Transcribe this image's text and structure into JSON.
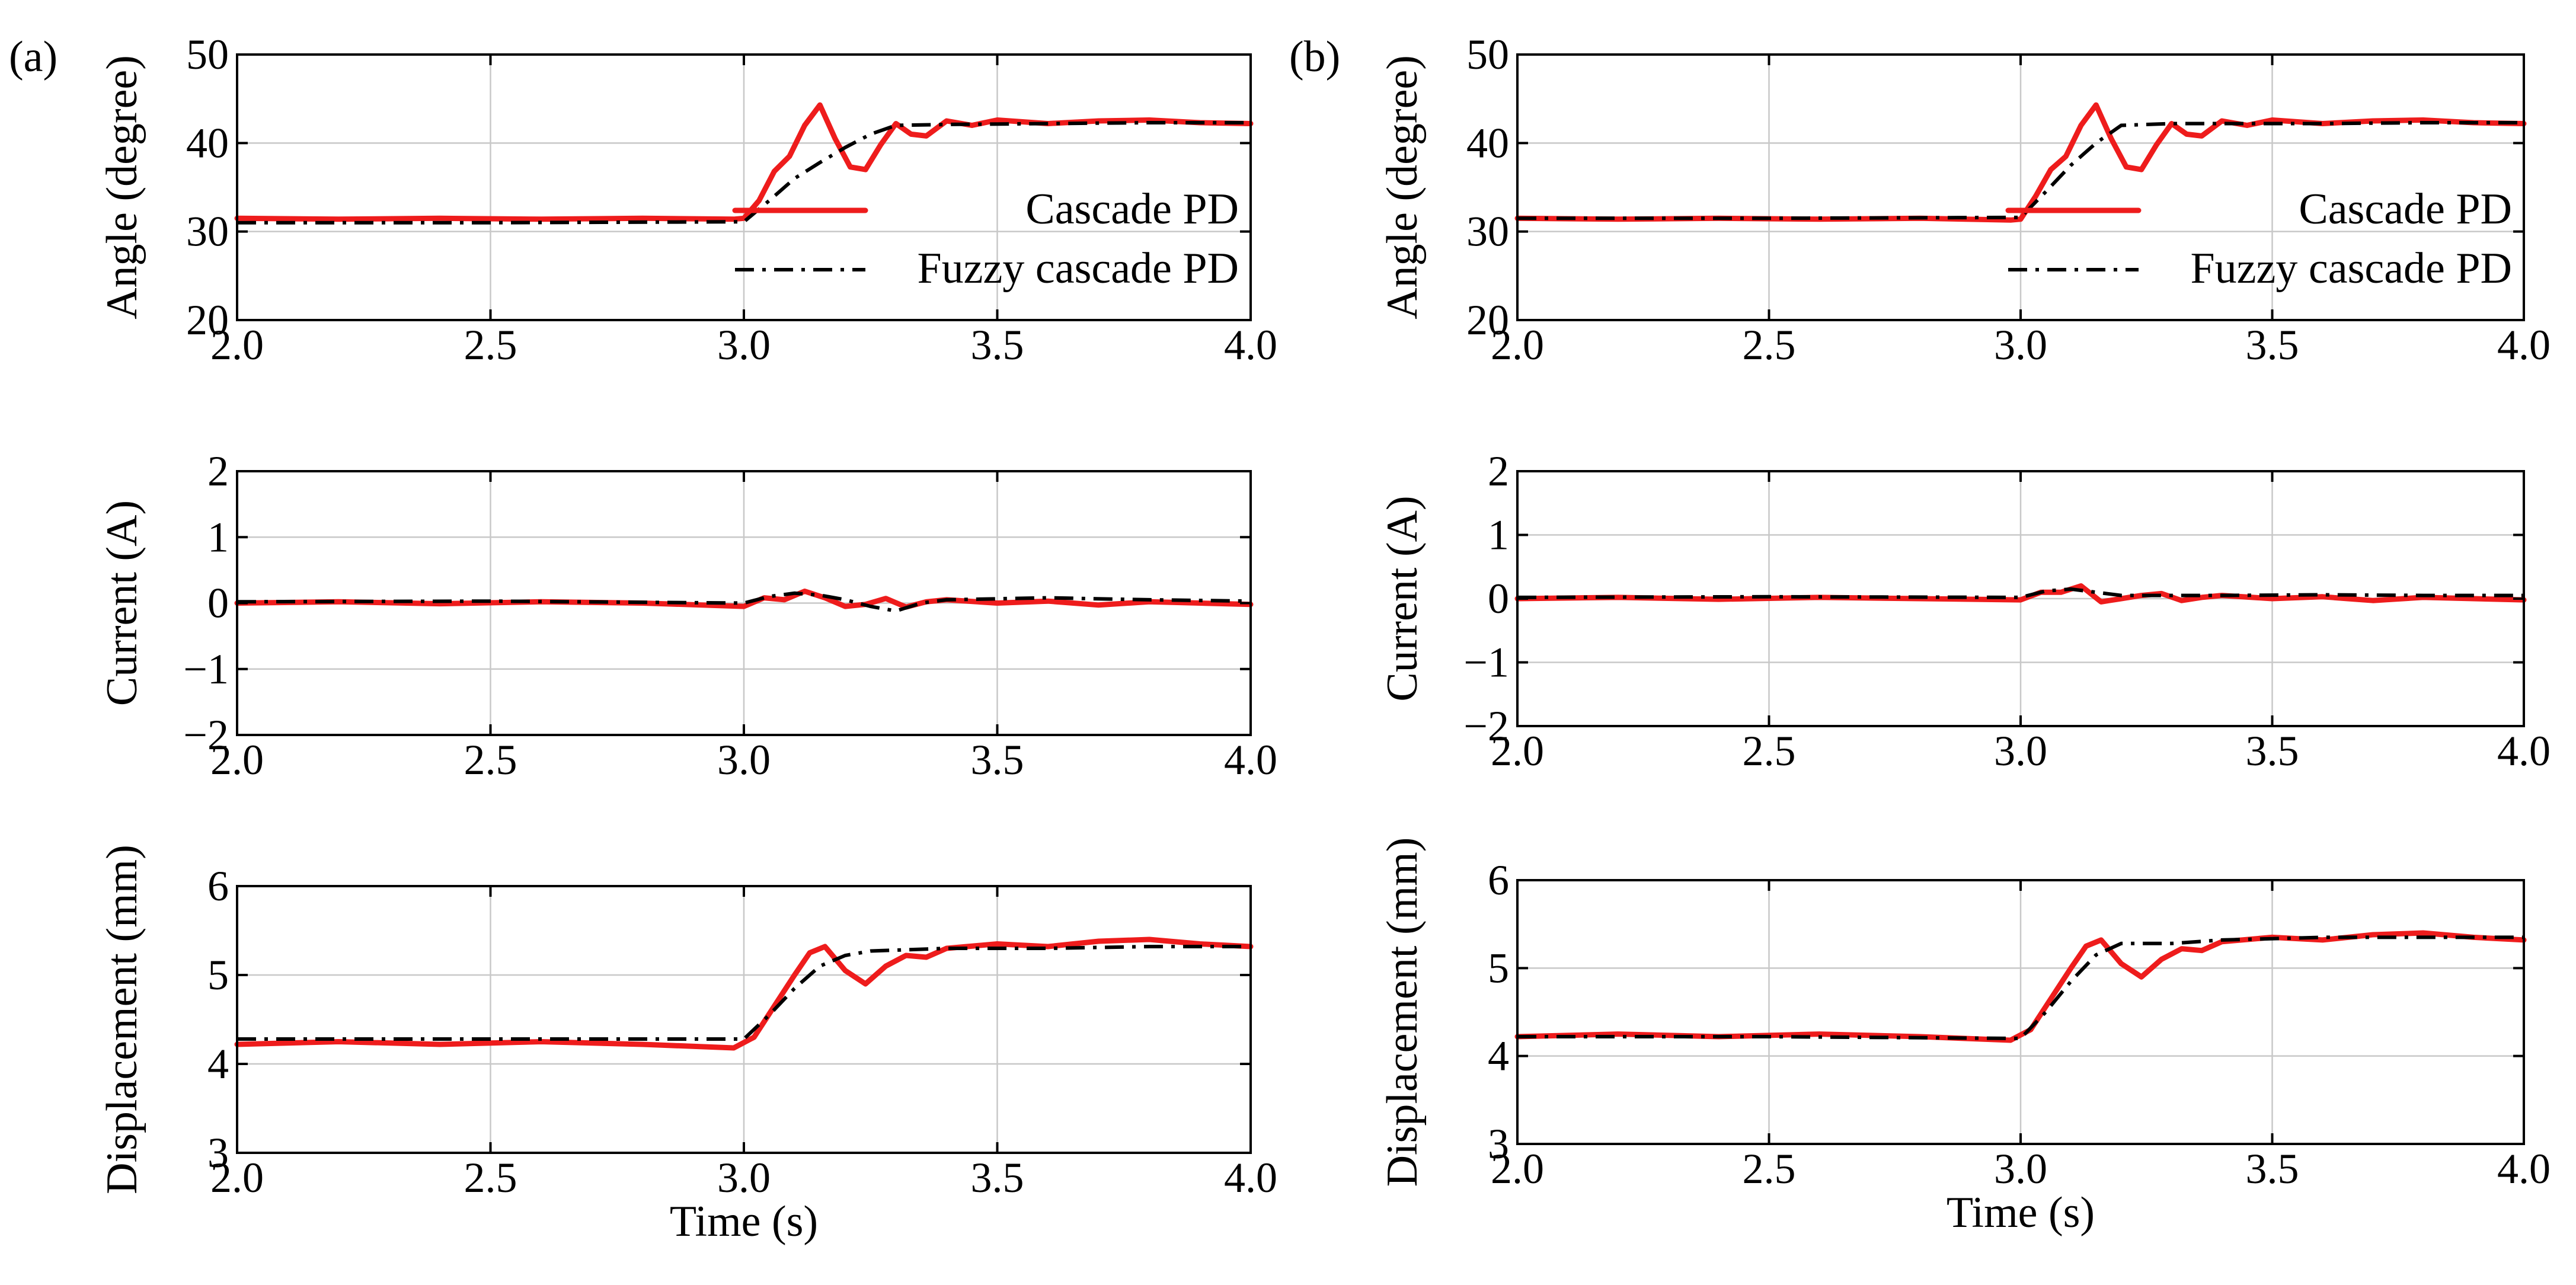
{
  "colors": {
    "cascade": "#ee1c1c",
    "fuzzy": "#000000",
    "grid": "#c8c8c8"
  },
  "chart_data": [
    {
      "type": "line",
      "panel_label": "(a)",
      "legend": "right",
      "xlabel": "",
      "ylabel": "Angle (degree)",
      "xlim": [
        2.0,
        4.0
      ],
      "ylim": [
        20,
        50
      ],
      "xticks": [
        "2.0",
        "2.5",
        "3.0",
        "3.5",
        "4.0"
      ],
      "yticks": [
        "20",
        "30",
        "40",
        "50"
      ],
      "grid": true,
      "series": [
        {
          "name": "Cascade PD",
          "x": [
            2.0,
            2.2,
            2.4,
            2.6,
            2.8,
            2.98,
            3.0,
            3.03,
            3.06,
            3.09,
            3.12,
            3.15,
            3.18,
            3.21,
            3.24,
            3.27,
            3.3,
            3.33,
            3.36,
            3.4,
            3.45,
            3.5,
            3.6,
            3.7,
            3.8,
            3.9,
            4.0
          ],
          "y": [
            31.5,
            31.4,
            31.5,
            31.4,
            31.5,
            31.4,
            31.5,
            33.5,
            36.8,
            38.5,
            42.0,
            44.3,
            40.5,
            37.3,
            37.0,
            39.8,
            42.2,
            41.0,
            40.8,
            42.5,
            42.0,
            42.6,
            42.2,
            42.5,
            42.6,
            42.3,
            42.2
          ]
        },
        {
          "name": "Fuzzy cascade PD",
          "x": [
            2.0,
            2.5,
            3.0,
            3.05,
            3.1,
            3.15,
            3.2,
            3.25,
            3.3,
            3.4,
            3.6,
            3.8,
            4.0
          ],
          "y": [
            31.0,
            31.0,
            31.1,
            33.5,
            36.0,
            37.8,
            39.5,
            41.0,
            42.0,
            42.1,
            42.2,
            42.3,
            42.3
          ]
        }
      ]
    },
    {
      "type": "line",
      "panel_label": "",
      "legend": "none",
      "xlabel": "",
      "ylabel": "Current (A)",
      "xlim": [
        2.0,
        4.0
      ],
      "ylim": [
        -2,
        2
      ],
      "xticks": [
        "2.0",
        "2.5",
        "3.0",
        "3.5",
        "4.0"
      ],
      "yticks": [
        "−2",
        "−1",
        "0",
        "1",
        "2"
      ],
      "grid": true,
      "series": [
        {
          "name": "Cascade PD",
          "x": [
            2.0,
            2.2,
            2.4,
            2.6,
            2.8,
            3.0,
            3.04,
            3.08,
            3.12,
            3.16,
            3.2,
            3.24,
            3.28,
            3.32,
            3.36,
            3.4,
            3.5,
            3.6,
            3.7,
            3.8,
            3.9,
            4.0
          ],
          "y": [
            0.0,
            0.02,
            -0.01,
            0.02,
            0.0,
            -0.05,
            0.08,
            0.05,
            0.18,
            0.08,
            -0.05,
            -0.02,
            0.07,
            -0.06,
            0.02,
            0.05,
            0.0,
            0.03,
            -0.03,
            0.02,
            0.0,
            -0.02
          ]
        },
        {
          "name": "Fuzzy cascade PD",
          "x": [
            2.0,
            2.5,
            3.0,
            3.05,
            3.1,
            3.15,
            3.2,
            3.25,
            3.3,
            3.35,
            3.4,
            3.6,
            3.8,
            4.0
          ],
          "y": [
            0.02,
            0.03,
            0.0,
            0.1,
            0.15,
            0.12,
            0.05,
            -0.05,
            -0.12,
            0.0,
            0.05,
            0.08,
            0.05,
            0.03
          ]
        }
      ]
    },
    {
      "type": "line",
      "panel_label": "",
      "legend": "none",
      "xlabel": "Time (s)",
      "ylabel": "Displacement (mm)",
      "xlim": [
        2.0,
        4.0
      ],
      "ylim": [
        3,
        6
      ],
      "xticks": [
        "2.0",
        "2.5",
        "3.0",
        "3.5",
        "4.0"
      ],
      "yticks": [
        "3",
        "4",
        "5",
        "6"
      ],
      "grid": true,
      "series": [
        {
          "name": "Cascade PD",
          "x": [
            2.0,
            2.2,
            2.4,
            2.6,
            2.8,
            2.98,
            3.02,
            3.06,
            3.1,
            3.13,
            3.16,
            3.2,
            3.24,
            3.28,
            3.32,
            3.36,
            3.4,
            3.5,
            3.6,
            3.7,
            3.8,
            3.9,
            4.0
          ],
          "y": [
            4.22,
            4.25,
            4.22,
            4.25,
            4.22,
            4.18,
            4.3,
            4.65,
            5.0,
            5.25,
            5.32,
            5.05,
            4.9,
            5.1,
            5.22,
            5.2,
            5.3,
            5.35,
            5.32,
            5.38,
            5.4,
            5.35,
            5.32
          ]
        },
        {
          "name": "Fuzzy cascade PD",
          "x": [
            2.0,
            2.5,
            3.0,
            3.05,
            3.1,
            3.15,
            3.2,
            3.25,
            3.3,
            3.4,
            3.6,
            3.8,
            4.0
          ],
          "y": [
            4.28,
            4.28,
            4.28,
            4.55,
            4.85,
            5.1,
            5.22,
            5.27,
            5.28,
            5.3,
            5.3,
            5.32,
            5.32
          ]
        }
      ]
    },
    {
      "type": "line",
      "panel_label": "(b)",
      "legend": "right",
      "xlabel": "",
      "ylabel": "Angle (degree)",
      "xlim": [
        2.0,
        4.0
      ],
      "ylim": [
        20,
        50
      ],
      "xticks": [
        "2.0",
        "2.5",
        "3.0",
        "3.5",
        "4.0"
      ],
      "yticks": [
        "20",
        "30",
        "40",
        "50"
      ],
      "grid": true,
      "series": [
        {
          "name": "Cascade PD",
          "x": [
            2.0,
            2.2,
            2.4,
            2.6,
            2.8,
            2.98,
            3.0,
            3.03,
            3.06,
            3.09,
            3.12,
            3.15,
            3.18,
            3.21,
            3.24,
            3.27,
            3.3,
            3.33,
            3.36,
            3.4,
            3.45,
            3.5,
            3.6,
            3.7,
            3.8,
            3.9,
            4.0
          ],
          "y": [
            31.5,
            31.4,
            31.5,
            31.4,
            31.5,
            31.3,
            31.4,
            34.0,
            37.0,
            38.5,
            42.0,
            44.3,
            40.5,
            37.3,
            37.0,
            39.8,
            42.2,
            41.0,
            40.8,
            42.5,
            42.0,
            42.6,
            42.2,
            42.5,
            42.6,
            42.3,
            42.2
          ]
        },
        {
          "name": "Fuzzy cascade PD",
          "x": [
            2.0,
            2.5,
            3.0,
            3.05,
            3.1,
            3.15,
            3.2,
            3.25,
            3.3,
            3.4,
            3.6,
            3.8,
            4.0
          ],
          "y": [
            31.5,
            31.5,
            31.6,
            34.5,
            37.5,
            40.0,
            42.0,
            42.1,
            42.2,
            42.2,
            42.2,
            42.3,
            42.3
          ]
        }
      ]
    },
    {
      "type": "line",
      "panel_label": "",
      "legend": "none",
      "xlabel": "",
      "ylabel": "Current (A)",
      "xlim": [
        2.0,
        4.0
      ],
      "ylim": [
        -2,
        2
      ],
      "xticks": [
        "2.0",
        "2.5",
        "3.0",
        "3.5",
        "4.0"
      ],
      "yticks": [
        "−2",
        "−1",
        "0",
        "1",
        "2"
      ],
      "grid": true,
      "series": [
        {
          "name": "Cascade PD",
          "x": [
            2.0,
            2.2,
            2.4,
            2.6,
            2.8,
            3.0,
            3.04,
            3.08,
            3.12,
            3.16,
            3.2,
            3.24,
            3.28,
            3.32,
            3.36,
            3.4,
            3.5,
            3.6,
            3.7,
            3.8,
            3.9,
            4.0
          ],
          "y": [
            0.0,
            0.02,
            -0.01,
            0.02,
            0.0,
            -0.02,
            0.1,
            0.1,
            0.2,
            -0.05,
            0.0,
            0.05,
            0.08,
            -0.03,
            0.02,
            0.05,
            0.0,
            0.03,
            -0.03,
            0.02,
            0.0,
            -0.02
          ]
        },
        {
          "name": "Fuzzy cascade PD",
          "x": [
            2.0,
            2.5,
            3.0,
            3.05,
            3.1,
            3.15,
            3.2,
            3.3,
            3.4,
            3.6,
            3.8,
            4.0
          ],
          "y": [
            0.02,
            0.03,
            0.02,
            0.12,
            0.15,
            0.1,
            0.05,
            0.05,
            0.05,
            0.06,
            0.05,
            0.05
          ]
        }
      ]
    },
    {
      "type": "line",
      "panel_label": "",
      "legend": "none",
      "xlabel": "Time (s)",
      "ylabel": "Displacement (mm)",
      "xlim": [
        2.0,
        4.0
      ],
      "ylim": [
        3,
        6
      ],
      "xticks": [
        "2.0",
        "2.5",
        "3.0",
        "3.5",
        "4.0"
      ],
      "yticks": [
        "3",
        "4",
        "5",
        "6"
      ],
      "grid": true,
      "series": [
        {
          "name": "Cascade PD",
          "x": [
            2.0,
            2.2,
            2.4,
            2.6,
            2.8,
            2.98,
            3.02,
            3.06,
            3.1,
            3.13,
            3.16,
            3.2,
            3.24,
            3.28,
            3.32,
            3.36,
            3.4,
            3.5,
            3.6,
            3.7,
            3.8,
            3.9,
            4.0
          ],
          "y": [
            4.22,
            4.25,
            4.22,
            4.25,
            4.22,
            4.18,
            4.3,
            4.65,
            5.0,
            5.25,
            5.32,
            5.05,
            4.9,
            5.1,
            5.22,
            5.2,
            5.3,
            5.35,
            5.32,
            5.38,
            5.4,
            5.35,
            5.32
          ]
        },
        {
          "name": "Fuzzy cascade PD",
          "x": [
            2.0,
            2.5,
            3.0,
            3.05,
            3.1,
            3.15,
            3.2,
            3.25,
            3.3,
            3.4,
            3.6,
            3.8,
            4.0
          ],
          "y": [
            4.22,
            4.22,
            4.2,
            4.5,
            4.85,
            5.15,
            5.28,
            5.28,
            5.28,
            5.32,
            5.35,
            5.35,
            5.35
          ]
        }
      ]
    }
  ]
}
